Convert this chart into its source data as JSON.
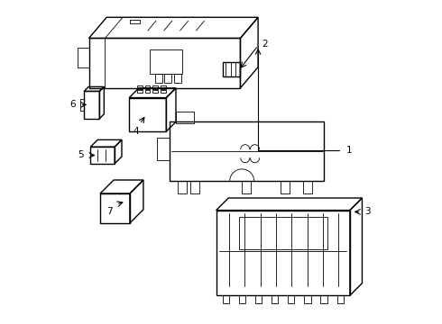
{
  "bg_color": "#ffffff",
  "line_color": "#000000",
  "line_width": 1.0,
  "thin_lw": 0.6
}
